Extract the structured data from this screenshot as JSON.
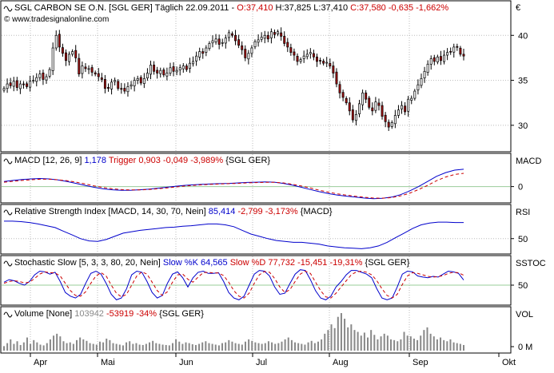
{
  "chart_data": [
    {
      "type": "candlestick",
      "header": {
        "symbol": "SGL CARBON SE O.N. [SGL GER]",
        "period": "Täglich",
        "date": "22.09.2011",
        "open": "O:37,410",
        "high": "H:37,825",
        "low": "L:37,410",
        "close": "C:37,580",
        "change": "-0,635",
        "change_pct": "-1,662%"
      },
      "watermark": "© www.tradesignalonline.com",
      "currency": "€",
      "y_ticks": [
        "40",
        "35",
        "30"
      ],
      "ylim": [
        27.5,
        43.4
      ],
      "close_series": [
        34.1,
        34.6,
        34.4,
        34.9,
        34.2,
        34.6,
        34.5,
        34.3,
        34.9,
        35.0,
        35.3,
        35.7,
        35.1,
        35.4,
        36.2,
        38.6,
        40.0,
        38.7,
        38.0,
        37.2,
        37.9,
        38.2,
        37.5,
        35.7,
        36.6,
        36.3,
        36.3,
        35.9,
        35.7,
        35.4,
        35.1,
        34.1,
        34.1,
        34.8,
        35.0,
        34.1,
        34.0,
        33.8,
        34.3,
        34.5,
        35.0,
        35.2,
        34.7,
        35.2,
        35.8,
        36.7,
        36.0,
        35.8,
        36.1,
        35.6,
        35.8,
        36.4,
        36.0,
        36.1,
        36.4,
        36.6,
        36.2,
        36.9,
        37.1,
        37.7,
        38.2,
        38.0,
        38.6,
        39.1,
        39.4,
        39.6,
        39.0,
        39.2,
        39.7,
        40.3,
        40.0,
        39.4,
        38.9,
        38.4,
        37.5,
        38.0,
        38.6,
        39.3,
        39.5,
        39.8,
        40.0,
        39.6,
        40.4,
        40.1,
        40.4,
        39.9,
        39.1,
        38.7,
        38.1,
        37.8,
        37.1,
        37.3,
        37.7,
        37.9,
        38.1,
        37.6,
        37.1,
        37.2,
        36.9,
        37.0,
        36.6,
        35.8,
        34.6,
        33.6,
        33.1,
        32.5,
        31.6,
        30.6,
        31.2,
        32.4,
        33.6,
        32.9,
        32.0,
        31.6,
        32.6,
        32.2,
        31.0,
        30.4,
        29.8,
        30.3,
        31.1,
        31.7,
        32.2,
        31.5,
        32.9,
        33.0,
        33.8,
        34.5,
        35.2,
        36.0,
        36.8,
        37.4,
        37.1,
        37.6,
        37.2,
        37.8,
        38.1,
        38.2,
        38.7,
        38.7,
        37.9,
        37.7
      ],
      "x_labels": [
        "Apr",
        "Mai",
        "Jun",
        "Jul",
        "Aug",
        "Sep",
        "Okt"
      ]
    },
    {
      "type": "line",
      "title": "MACD [12, 26, 9]",
      "value1": "1,178",
      "trigger_label": "Trigger",
      "value2": "0,903",
      "change": "-0,049",
      "change_pct": "-3,989%",
      "source": "{SGL GER}",
      "axis_title": "MACD",
      "y_ticks": [
        "0"
      ],
      "series": [
        {
          "values": [
            0.35,
            0.42,
            0.48,
            0.52,
            0.55,
            0.52,
            0.45,
            0.35,
            0.22,
            0.08,
            -0.05,
            -0.15,
            -0.22,
            -0.25,
            -0.25,
            -0.22,
            -0.18,
            -0.12,
            -0.05,
            0.02,
            0.08,
            0.12,
            0.15,
            0.18,
            0.2,
            0.22,
            0.25,
            0.28,
            0.3,
            0.32,
            0.3,
            0.22,
            0.1,
            -0.05,
            -0.2,
            -0.35,
            -0.48,
            -0.58,
            -0.65,
            -0.72,
            -0.78,
            -0.82,
            -0.8,
            -0.72,
            -0.55,
            -0.3,
            0.0,
            0.35,
            0.7,
            0.95,
            1.12,
            1.18
          ]
        },
        {
          "values": [
            0.3,
            0.36,
            0.42,
            0.46,
            0.5,
            0.5,
            0.46,
            0.4,
            0.3,
            0.18,
            0.05,
            -0.06,
            -0.15,
            -0.2,
            -0.23,
            -0.23,
            -0.2,
            -0.15,
            -0.1,
            -0.03,
            0.03,
            0.08,
            0.12,
            0.15,
            0.18,
            0.2,
            0.22,
            0.25,
            0.27,
            0.29,
            0.29,
            0.25,
            0.16,
            0.04,
            -0.1,
            -0.25,
            -0.38,
            -0.5,
            -0.58,
            -0.66,
            -0.73,
            -0.78,
            -0.79,
            -0.75,
            -0.63,
            -0.45,
            -0.2,
            0.08,
            0.4,
            0.65,
            0.82,
            0.9
          ]
        }
      ]
    },
    {
      "type": "line",
      "title": "Relative Strength Index [MACD, 14, 30, 70, Nein]",
      "value1": "85,414",
      "change": "-2,799",
      "change_pct": "-3,173%",
      "source": "{MACD}",
      "axis_title": "RSI",
      "y_ticks": [
        "50"
      ],
      "series": [
        {
          "values": [
            88,
            88,
            87,
            85,
            82,
            78,
            74,
            66,
            58,
            50,
            45,
            44,
            48,
            55,
            62,
            65,
            68,
            70,
            72,
            74,
            75,
            77,
            78,
            80,
            82,
            82,
            80,
            76,
            68,
            60,
            55,
            50,
            46,
            44,
            42,
            42,
            40,
            38,
            34,
            32,
            30,
            29,
            28,
            30,
            34,
            42,
            52,
            62,
            72,
            80,
            84,
            86,
            86,
            85,
            85
          ]
        }
      ]
    },
    {
      "type": "line",
      "title": "Stochastic Slow [5, 3, 3, 80, 20, Nein]",
      "label_k": "Slow %K",
      "value_k": "64,565",
      "label_d": "Slow %D",
      "value_d": "77,732",
      "change": "-15,451",
      "change_pct": "-19,31%",
      "source": "{SGL GER}",
      "axis_title": "SSTOC",
      "y_ticks": [
        "50"
      ],
      "series": [
        {
          "values": [
            58,
            65,
            62,
            55,
            50,
            60,
            78,
            88,
            86,
            80,
            85,
            60,
            30,
            20,
            15,
            25,
            55,
            82,
            88,
            80,
            55,
            25,
            10,
            15,
            40,
            78,
            88,
            85,
            60,
            30,
            15,
            22,
            55,
            80,
            86,
            70,
            45,
            70,
            85,
            88,
            82,
            82,
            84,
            60,
            30,
            15,
            10,
            20,
            50,
            80,
            90,
            88,
            75,
            45,
            25,
            28,
            55,
            80,
            92,
            90,
            65,
            35,
            15,
            10,
            20,
            45,
            60,
            78,
            90,
            90,
            85,
            80,
            70,
            40,
            15,
            10,
            15,
            45,
            80,
            88,
            86,
            75,
            72,
            70,
            74,
            72,
            80,
            88,
            86,
            82,
            64
          ]
        },
        {
          "values": [
            55,
            60,
            62,
            60,
            56,
            58,
            68,
            80,
            86,
            84,
            83,
            75,
            55,
            35,
            22,
            20,
            32,
            55,
            75,
            84,
            75,
            50,
            28,
            18,
            25,
            50,
            75,
            86,
            80,
            58,
            35,
            22,
            32,
            58,
            78,
            80,
            66,
            58,
            72,
            84,
            85,
            83,
            83,
            76,
            58,
            35,
            20,
            15,
            28,
            55,
            78,
            87,
            85,
            68,
            45,
            30,
            38,
            60,
            80,
            88,
            82,
            58,
            35,
            18,
            15,
            28,
            45,
            62,
            78,
            86,
            88,
            85,
            78,
            62,
            40,
            22,
            15,
            25,
            52,
            75,
            84,
            82,
            78,
            74,
            72,
            73,
            76,
            82,
            85,
            84,
            77
          ]
        }
      ]
    },
    {
      "type": "bar",
      "title": "Volume [None]",
      "value1": "103942",
      "change": "-53919",
      "change_pct": "-34%",
      "source": "{SGL GER}",
      "axis_title": "VOL",
      "y_ticks": [
        "0 M"
      ],
      "values": [
        0.12,
        0.2,
        0.3,
        0.18,
        0.25,
        0.15,
        0.22,
        0.35,
        0.18,
        0.28,
        0.22,
        0.16,
        0.14,
        0.2,
        0.3,
        0.4,
        0.45,
        0.38,
        0.25,
        0.2,
        0.22,
        0.18,
        0.28,
        0.35,
        0.3,
        0.26,
        0.2,
        0.18,
        0.16,
        0.24,
        0.22,
        0.32,
        0.28,
        0.2,
        0.18,
        0.16,
        0.14,
        0.22,
        0.25,
        0.18,
        0.2,
        0.16,
        0.15,
        0.18,
        0.22,
        0.26,
        0.2,
        0.18,
        0.16,
        0.15,
        0.14,
        0.2,
        0.3,
        0.24,
        0.18,
        0.22,
        0.2,
        0.17,
        0.15,
        0.18,
        0.22,
        0.25,
        0.2,
        0.18,
        0.16,
        0.14,
        0.2,
        0.22,
        0.28,
        0.24,
        0.2,
        0.18,
        0.16,
        0.24,
        0.3,
        0.26,
        0.22,
        0.2,
        0.18,
        0.2,
        0.25,
        0.22,
        0.18,
        0.2,
        0.24,
        0.3,
        0.35,
        0.28,
        0.22,
        0.2,
        0.18,
        0.16,
        0.22,
        0.26,
        0.2,
        0.24,
        0.3,
        0.45,
        0.55,
        0.7,
        0.6,
        0.9,
        1.0,
        0.85,
        0.62,
        0.7,
        0.55,
        0.5,
        0.4,
        0.48,
        0.35,
        0.55,
        0.42,
        0.3,
        0.38,
        0.45,
        0.4,
        0.3,
        0.28,
        0.25,
        0.3,
        0.5,
        0.4,
        0.38,
        0.32,
        0.28,
        0.4,
        0.55,
        0.62,
        0.45,
        0.38,
        0.3,
        0.35,
        0.28,
        0.25,
        0.3,
        0.22,
        0.2,
        0.18,
        0.15
      ]
    }
  ]
}
